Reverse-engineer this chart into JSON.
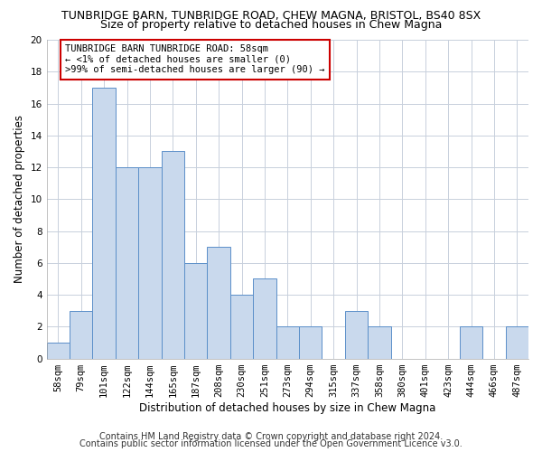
{
  "title_line1": "TUNBRIDGE BARN, TUNBRIDGE ROAD, CHEW MAGNA, BRISTOL, BS40 8SX",
  "title_line2": "Size of property relative to detached houses in Chew Magna",
  "xlabel": "Distribution of detached houses by size in Chew Magna",
  "ylabel": "Number of detached properties",
  "categories": [
    "58sqm",
    "79sqm",
    "101sqm",
    "122sqm",
    "144sqm",
    "165sqm",
    "187sqm",
    "208sqm",
    "230sqm",
    "251sqm",
    "273sqm",
    "294sqm",
    "315sqm",
    "337sqm",
    "358sqm",
    "380sqm",
    "401sqm",
    "423sqm",
    "444sqm",
    "466sqm",
    "487sqm"
  ],
  "values": [
    1,
    3,
    17,
    12,
    12,
    13,
    6,
    7,
    4,
    5,
    2,
    2,
    0,
    3,
    2,
    0,
    0,
    0,
    2,
    0,
    2
  ],
  "bar_color": "#c9d9ed",
  "bar_edge_color": "#5b8fc9",
  "annotation_text": "TUNBRIDGE BARN TUNBRIDGE ROAD: 58sqm\n← <1% of detached houses are smaller (0)\n>99% of semi-detached houses are larger (90) →",
  "annotation_box_color": "#ffffff",
  "annotation_box_edge_color": "#cc0000",
  "ylim": [
    0,
    20
  ],
  "yticks": [
    0,
    2,
    4,
    6,
    8,
    10,
    12,
    14,
    16,
    18,
    20
  ],
  "footer_line1": "Contains HM Land Registry data © Crown copyright and database right 2024.",
  "footer_line2": "Contains public sector information licensed under the Open Government Licence v3.0.",
  "background_color": "#ffffff",
  "grid_color": "#c8d0dc",
  "title_fontsize": 9.0,
  "subtitle_fontsize": 9.0,
  "ylabel_fontsize": 8.5,
  "xlabel_fontsize": 8.5,
  "tick_fontsize": 7.5,
  "annotation_fontsize": 7.5,
  "footer_fontsize": 7.0
}
